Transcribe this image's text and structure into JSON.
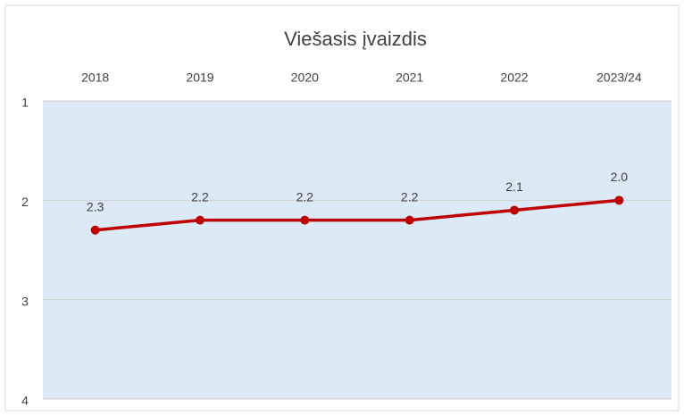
{
  "chart_data": {
    "type": "line",
    "title": "Viešasis įvaizdis",
    "categories": [
      "2018",
      "2019",
      "2020",
      "2021",
      "2022",
      "2023/24"
    ],
    "series": [
      {
        "name": "Viešasis įvaizdis",
        "color": "#c00000",
        "values": [
          2.3,
          2.2,
          2.2,
          2.2,
          2.1,
          2.0
        ],
        "value_labels": [
          "2.3",
          "2.2",
          "2.2",
          "2.2",
          "2.1",
          "2.0"
        ]
      }
    ],
    "ylim": [
      1,
      4
    ],
    "yticks": [
      1,
      2,
      3,
      4
    ],
    "y_inverted": true,
    "grid": true,
    "x_axis_position": "top",
    "plot_background": "#dce9f7"
  }
}
